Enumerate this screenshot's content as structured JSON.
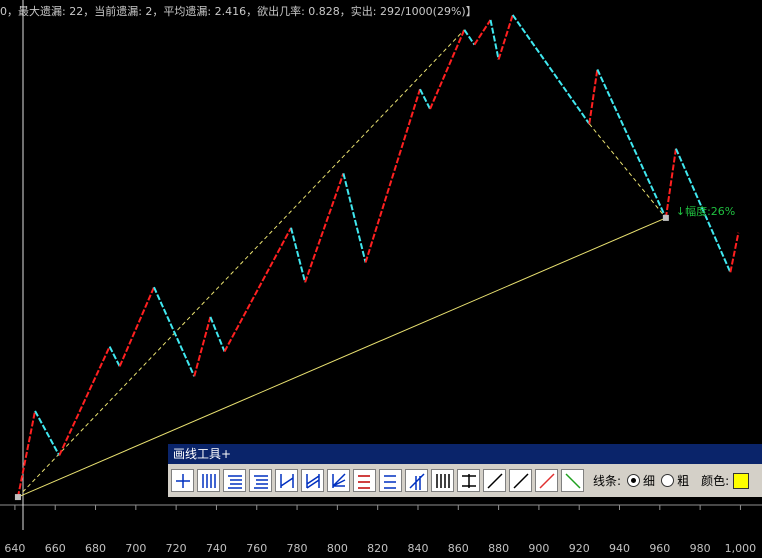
{
  "status": "0，最大遗漏: 22，当前遗漏: 2，平均遗漏: 2.416，欲出几率: 0.828，实出: 292/1000(29%)】",
  "chart_data": {
    "type": "line",
    "x": [
      641.5,
      650,
      662,
      687,
      692,
      709,
      729,
      737,
      744,
      777,
      784,
      803,
      814,
      841,
      846,
      863,
      868,
      876,
      880,
      887,
      925,
      929,
      963,
      968,
      995,
      999
    ],
    "values": [
      1.6,
      19,
      10,
      32,
      28,
      44,
      26,
      38,
      31,
      56,
      45,
      67,
      49,
      84,
      80,
      96,
      93,
      98,
      90,
      99,
      77,
      88,
      58,
      72,
      47,
      55
    ],
    "up_color": "#ff2020",
    "down_color": "#40e8f0",
    "xlim": [
      632.6,
      1010.7
    ],
    "ylim": [
      0,
      100
    ],
    "xticks": [
      640,
      660,
      680,
      700,
      720,
      740,
      760,
      780,
      800,
      820,
      840,
      860,
      880,
      900,
      920,
      940,
      960,
      980,
      {
        "value": 1000,
        "label": "1,000"
      }
    ],
    "annotation": "↓幅度:26%"
  },
  "toolbar": {
    "title": "画线工具+",
    "line_label": "线条:",
    "thin": "细",
    "thick": "粗",
    "color_label": "颜色:"
  }
}
